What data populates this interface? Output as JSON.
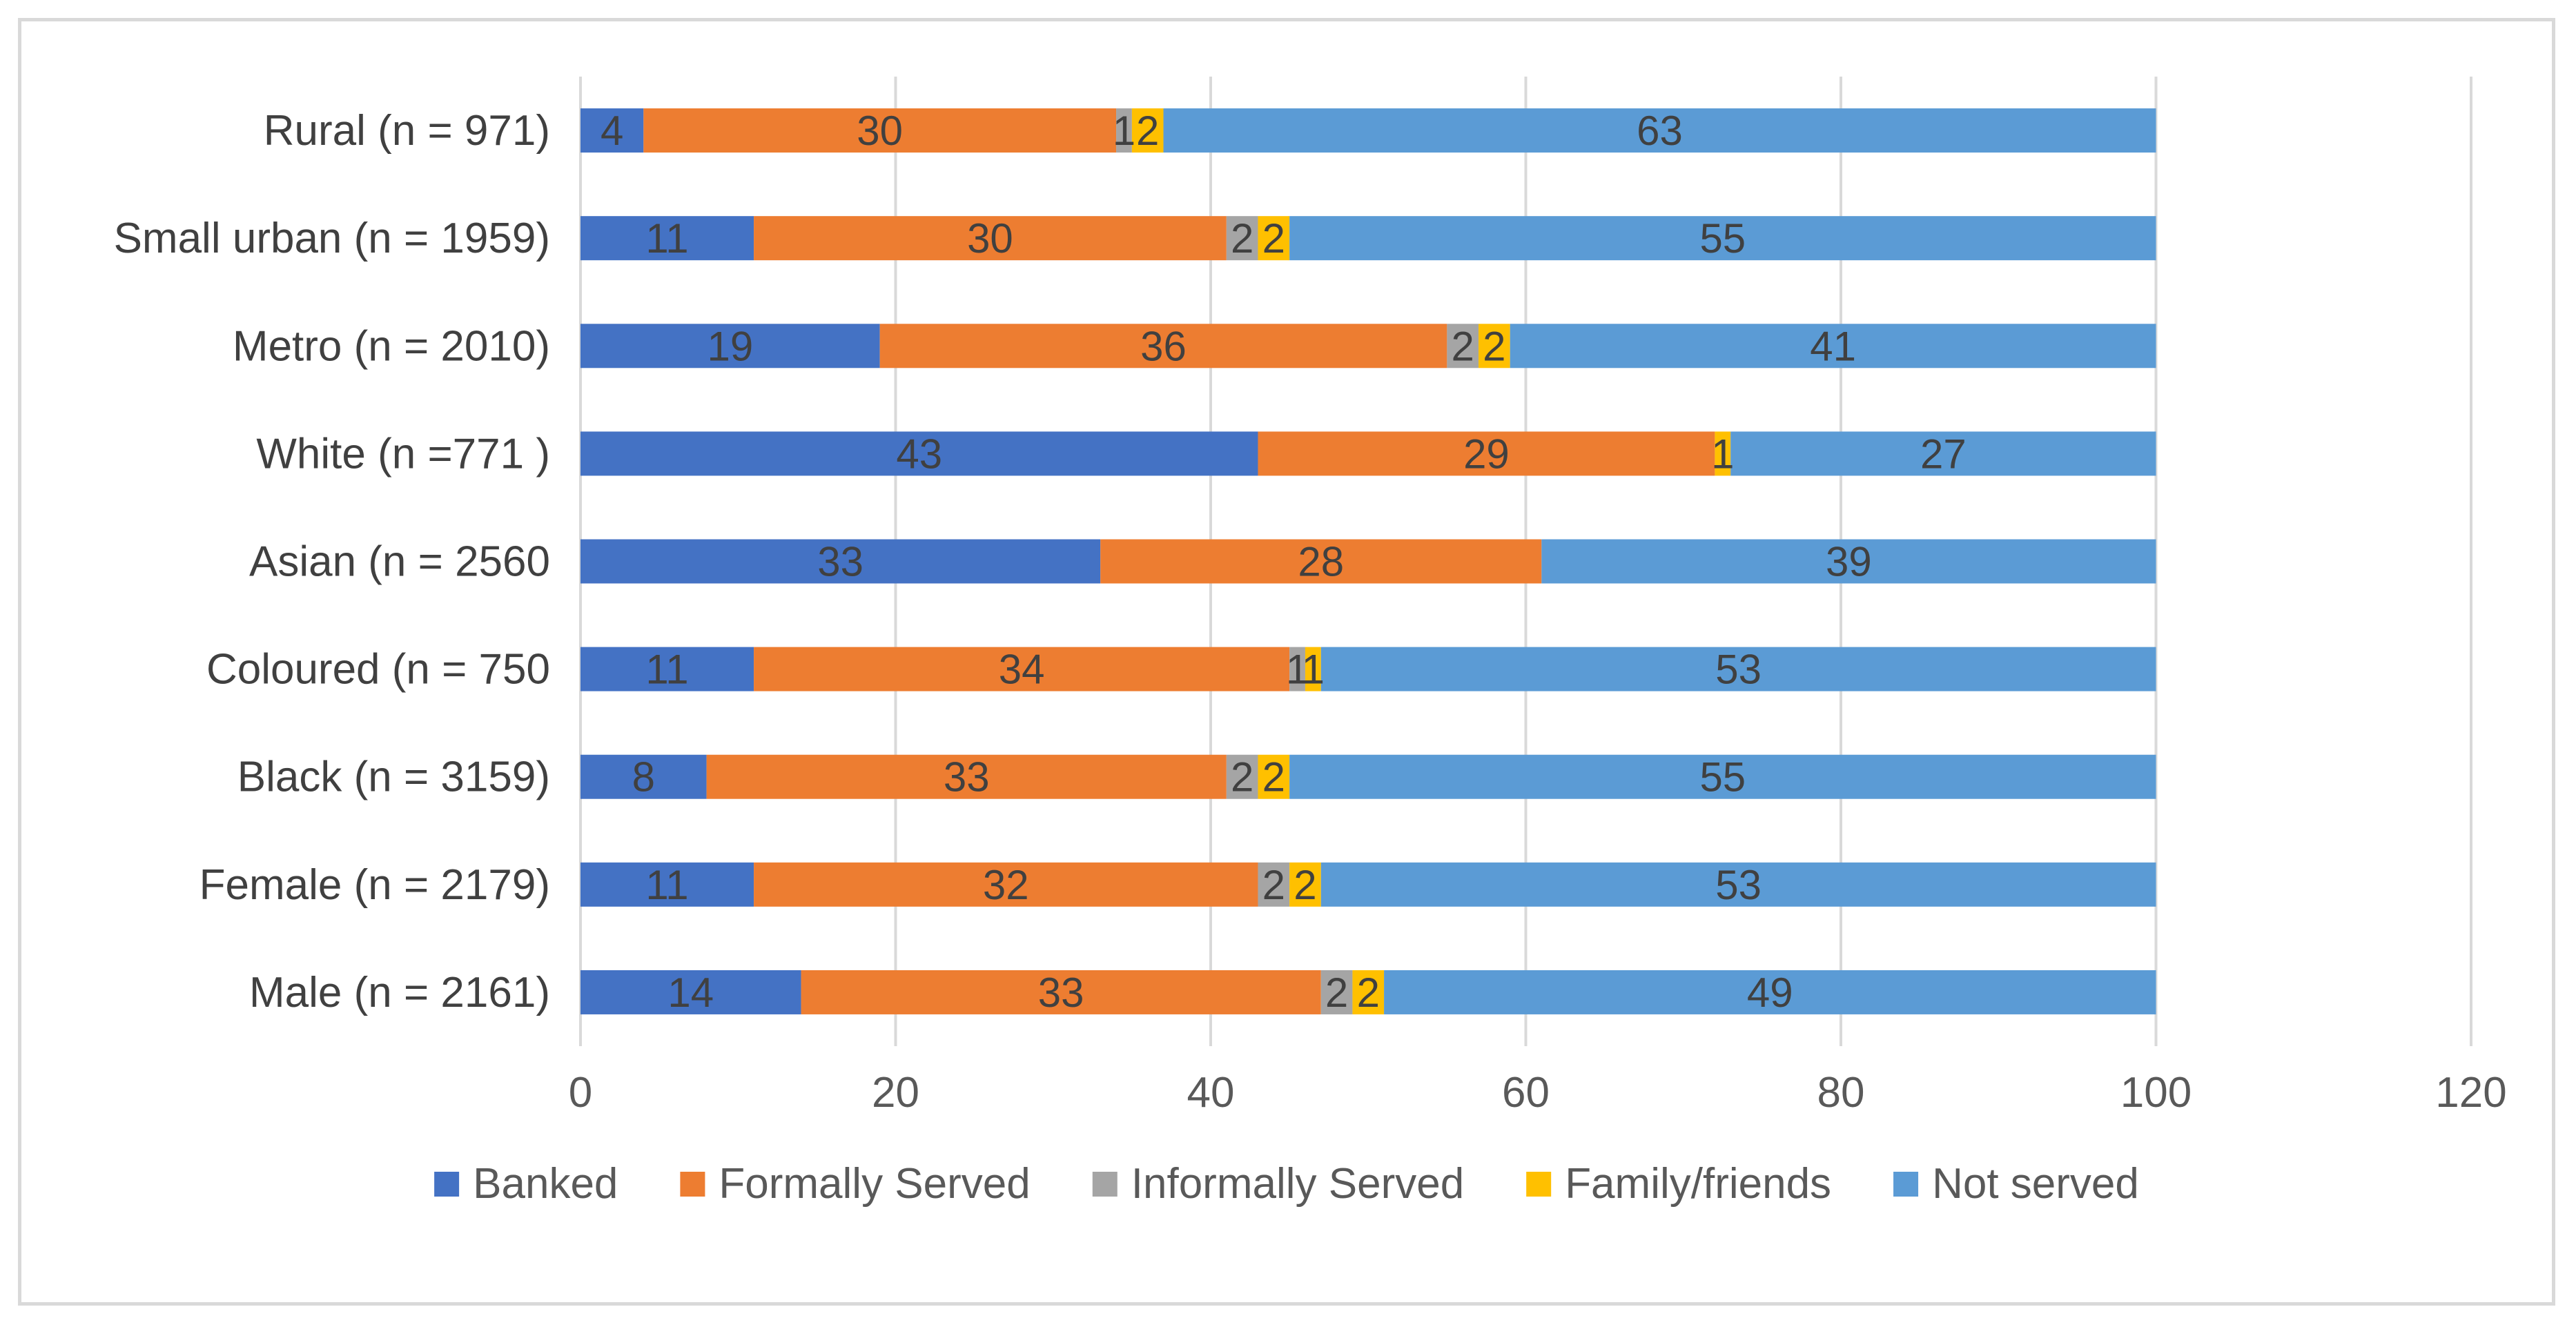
{
  "chart_data": {
    "type": "bar",
    "orientation": "horizontal",
    "stacked": true,
    "categories": [
      "Rural (n = 971)",
      "Small urban (n = 1959)",
      "Metro (n = 2010)",
      "White (n =771 )",
      "Asian (n = 2560",
      "Coloured (n = 750",
      "Black (n = 3159)",
      "Female (n = 2179)",
      "Male (n = 2161)"
    ],
    "series": [
      {
        "name": "Banked",
        "color": "#4472c4",
        "values": [
          4,
          11,
          19,
          43,
          33,
          11,
          8,
          11,
          14
        ]
      },
      {
        "name": "Formally Served",
        "color": "#ed7d31",
        "values": [
          30,
          30,
          36,
          29,
          28,
          34,
          33,
          32,
          33
        ]
      },
      {
        "name": "Informally Served",
        "color": "#a5a5a5",
        "values": [
          1,
          2,
          2,
          null,
          null,
          1,
          2,
          2,
          2
        ]
      },
      {
        "name": "Family/friends",
        "color": "#ffc000",
        "values": [
          2,
          2,
          2,
          1,
          null,
          1,
          2,
          2,
          2
        ]
      },
      {
        "name": "Not served",
        "color": "#5b9bd5",
        "values": [
          63,
          55,
          41,
          27,
          39,
          53,
          55,
          53,
          49
        ]
      }
    ],
    "xlim": [
      0,
      120
    ],
    "xticks": [
      0,
      20,
      40,
      60,
      80,
      100,
      120
    ],
    "grid": true,
    "legend": "bottom",
    "title": "",
    "xlabel": "",
    "ylabel": ""
  }
}
